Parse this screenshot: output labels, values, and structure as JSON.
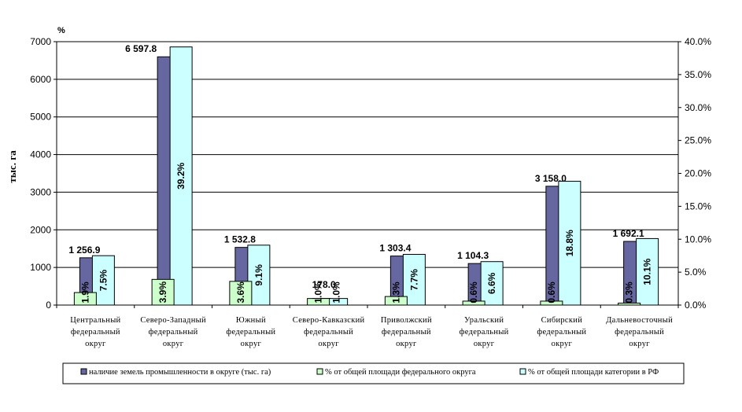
{
  "chart_data": {
    "type": "bar",
    "ylabel_left": "тыс. га",
    "ylabel_right": "%",
    "ylim_left": [
      0,
      7000
    ],
    "yticks_left": [
      "0",
      "1000",
      "2000",
      "3000",
      "4000",
      "5000",
      "6000",
      "7000"
    ],
    "ylim_right": [
      0,
      40
    ],
    "yticks_right": [
      "0.0%",
      "5.0%",
      "10.0%",
      "15.0%",
      "20.0%",
      "25.0%",
      "30.0%",
      "35.0%",
      "40.0%"
    ],
    "grid": true,
    "legend_position": "bottom",
    "categories": [
      [
        "Центральный",
        "федеральный",
        "округ"
      ],
      [
        "Северо-Западный",
        "федеральный",
        "округ"
      ],
      [
        "Южный",
        "федеральный",
        "округ"
      ],
      [
        "Северо-Кавказский",
        "федеральный",
        "округ"
      ],
      [
        "Приволжский",
        "федеральный",
        "округ"
      ],
      [
        "Уральский",
        "федеральный",
        "округ"
      ],
      [
        "Сибирский",
        "федеральный",
        "округ"
      ],
      [
        "Дальневосточный",
        "федеральный",
        "округ"
      ]
    ],
    "series": [
      {
        "name": "наличие земель промышленности в округе (тыс. га)",
        "axis": "left",
        "color": "#6666a0",
        "values": [
          1256.9,
          6597.8,
          1532.8,
          178.0,
          1303.4,
          1104.3,
          3158.0,
          1692.1
        ],
        "labels": [
          "1 256.9",
          "6 597.8",
          "1 532.8",
          "178.0",
          "1 303.4",
          "1 104.3",
          "3 158.0",
          "1 692.1"
        ]
      },
      {
        "name": "% от общей площади федерального округа",
        "axis": "right",
        "color": "#ccffcc",
        "values": [
          1.9,
          3.9,
          3.6,
          1.0,
          1.3,
          0.6,
          0.6,
          0.3
        ],
        "labels": [
          "1.9%",
          "3.9%",
          "3.6%",
          "1.0%",
          "1.3%",
          "0.6%",
          "0.6%",
          "0.3%"
        ]
      },
      {
        "name": "% от общей площади категории в РФ",
        "axis": "right",
        "color": "#ccffff",
        "values": [
          7.5,
          39.2,
          9.1,
          1.0,
          7.7,
          6.6,
          18.8,
          10.1
        ],
        "labels": [
          "7.5%",
          "39.2%",
          "9.1%",
          "1.0%",
          "7.7%",
          "6.6%",
          "18.8%",
          "10.1%"
        ]
      }
    ]
  }
}
